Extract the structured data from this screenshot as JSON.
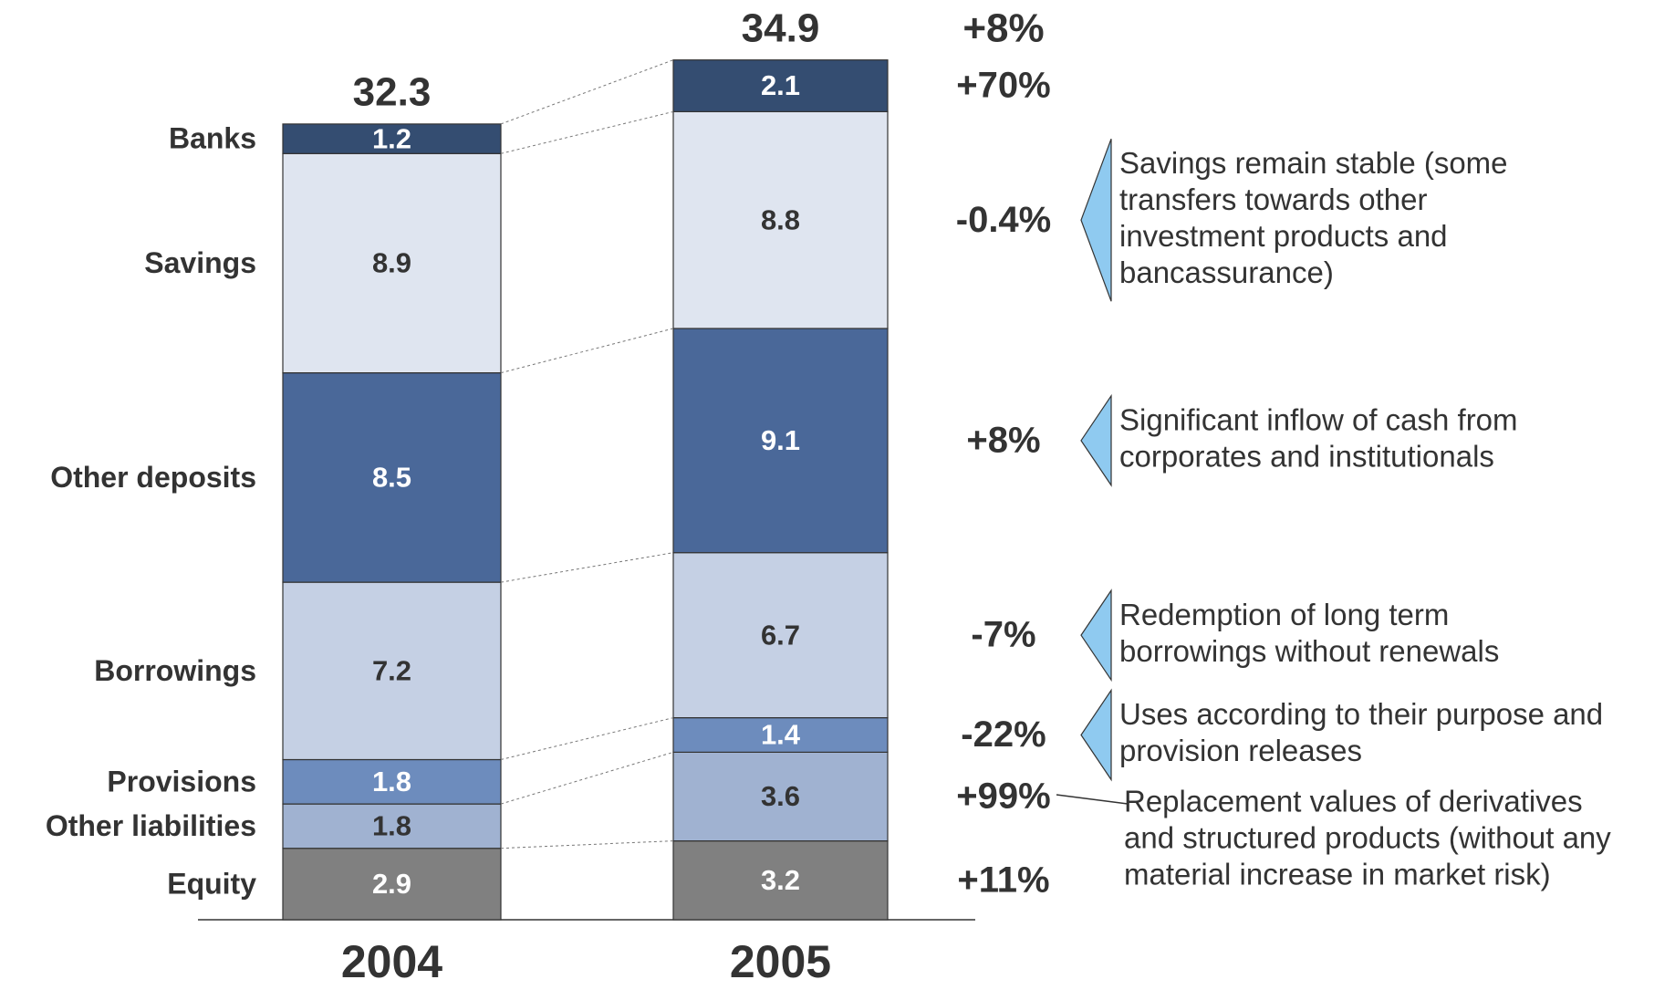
{
  "chart_data": {
    "type": "stacked_bar",
    "categories": [
      "2004",
      "2005"
    ],
    "totals": [
      32.3,
      34.9
    ],
    "total_change": "+8%",
    "series": [
      {
        "name": "Equity",
        "color": "#808080",
        "label_color": "#ffffff",
        "values": [
          2.9,
          3.2
        ],
        "change": "+11%"
      },
      {
        "name": "Other liabilities",
        "color": "#a0b2d1",
        "label_color": "#333333",
        "values": [
          1.8,
          3.6
        ],
        "change": "+99%",
        "note": [
          "Replacement values of derivatives",
          "and structured products (without any",
          "material increase in market risk)"
        ],
        "note_marker": "line"
      },
      {
        "name": "Provisions",
        "color": "#6d8cbd",
        "label_color": "#ffffff",
        "values": [
          1.8,
          1.4
        ],
        "change": "-22%",
        "note": [
          "Uses according to their purpose and",
          "provision releases"
        ],
        "note_marker": "triangle"
      },
      {
        "name": "Borrowings",
        "color": "#c5d0e4",
        "label_color": "#333333",
        "values": [
          7.2,
          6.7
        ],
        "change": "-7%",
        "note": [
          "Redemption of long term",
          "borrowings without renewals"
        ],
        "note_marker": "triangle"
      },
      {
        "name": "Other deposits",
        "color": "#4a6899",
        "label_color": "#ffffff",
        "values": [
          8.5,
          9.1
        ],
        "change": "+8%",
        "note": [
          "Significant inflow of cash from",
          "corporates and institutionals"
        ],
        "note_marker": "triangle"
      },
      {
        "name": "Savings",
        "color": "#dfe5f0",
        "label_color": "#333333",
        "values": [
          8.9,
          8.8
        ],
        "change": "-0.4%",
        "note": [
          "Savings remain stable (some",
          "transfers towards other",
          "investment products and",
          "bancassurance)"
        ],
        "note_marker": "triangle"
      },
      {
        "name": "Banks",
        "color": "#344d71",
        "label_color": "#ffffff",
        "values": [
          1.2,
          2.1
        ],
        "change": "+70%"
      }
    ]
  }
}
